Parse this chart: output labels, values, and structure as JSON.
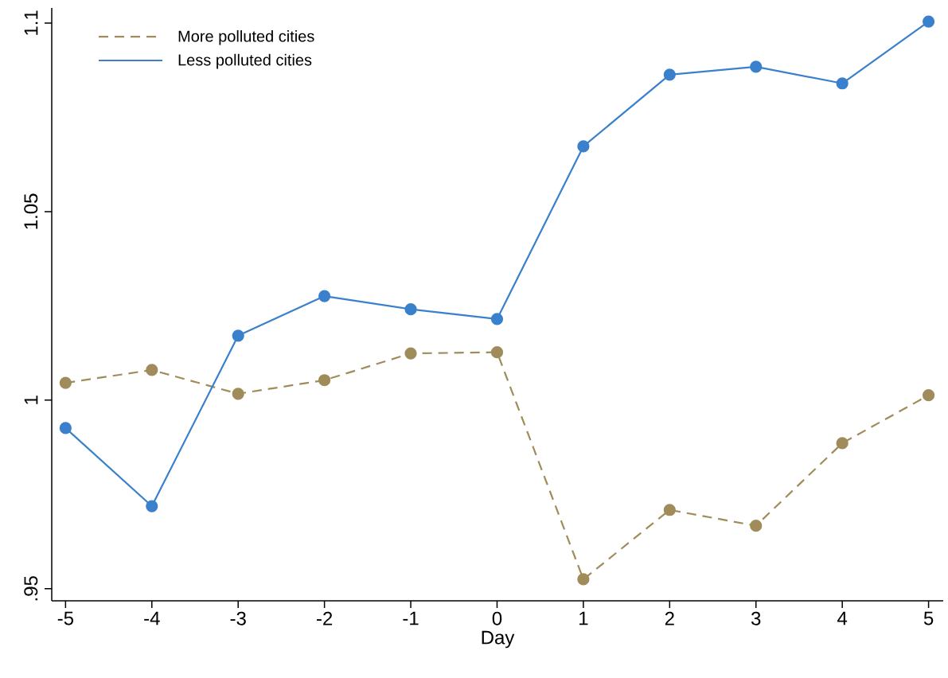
{
  "chart_data": {
    "type": "line",
    "xlabel": "Day",
    "x": [
      -5,
      -4,
      -3,
      -2,
      -1,
      0,
      1,
      2,
      3,
      4,
      5
    ],
    "series": [
      {
        "name": "More polluted cities",
        "color": "#a08c5a",
        "line_style": "dashed",
        "values": [
          1.0046,
          1.008,
          1.0017,
          1.0053,
          1.0124,
          1.0127,
          0.9525,
          0.9709,
          0.9667,
          0.9886,
          1.0013
        ]
      },
      {
        "name": "Less polluted cities",
        "color": "#3a80cc",
        "line_style": "solid",
        "values": [
          0.9926,
          0.9719,
          1.0171,
          1.0276,
          1.0241,
          1.0215,
          1.0673,
          1.0863,
          1.0884,
          1.084,
          1.1004
        ]
      }
    ],
    "xlim": [
      -5.16,
      5.17
    ],
    "ylim": [
      0.9468,
      1.104
    ],
    "xticks": [
      -5,
      -4,
      -3,
      -2,
      -1,
      0,
      1,
      2,
      3,
      4,
      5
    ],
    "yticks": [
      {
        "value": 0.95,
        "label": ".95"
      },
      1,
      1.05,
      1.1
    ],
    "grid": false,
    "legend": "top left",
    "marker": "circle"
  }
}
